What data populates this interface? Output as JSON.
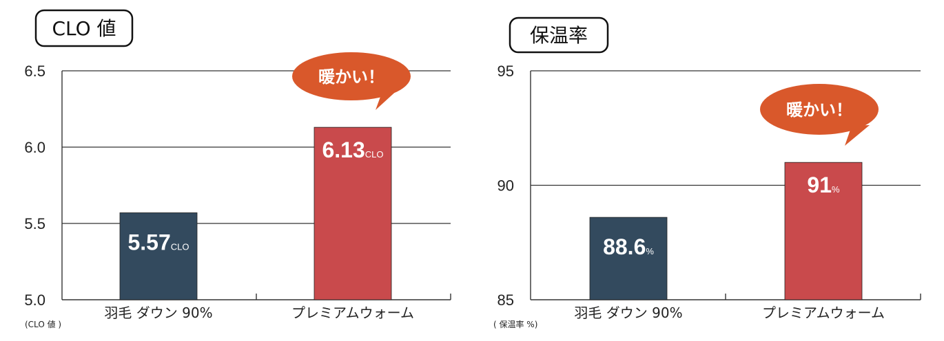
{
  "colors": {
    "down": "#334a5e",
    "premium": "#c94a4c",
    "bubble": "#d9582b"
  },
  "chart_data": [
    {
      "type": "bar",
      "title": "CLO 値",
      "ylabel": "(CLO 値 )",
      "ylim": [
        5.0,
        6.5
      ],
      "yticks": [
        "5.0",
        "5.5",
        "6.0",
        "6.5"
      ],
      "categories": [
        "羽毛 ダウン 90%",
        "プレミアムウォーム"
      ],
      "values": [
        5.57,
        6.13
      ],
      "value_labels": [
        "5.57",
        "6.13"
      ],
      "value_unit": "CLO",
      "annotation": "暖かい！"
    },
    {
      "type": "bar",
      "title": "保温率",
      "ylabel": "( 保温率 %)",
      "ylim": [
        85,
        95
      ],
      "yticks": [
        "85",
        "90",
        "95"
      ],
      "categories": [
        "羽毛 ダウン 90%",
        "プレミアムウォーム"
      ],
      "values": [
        88.6,
        91
      ],
      "value_labels": [
        "88.6",
        "91"
      ],
      "value_unit": "%",
      "annotation": "暖かい！"
    }
  ]
}
